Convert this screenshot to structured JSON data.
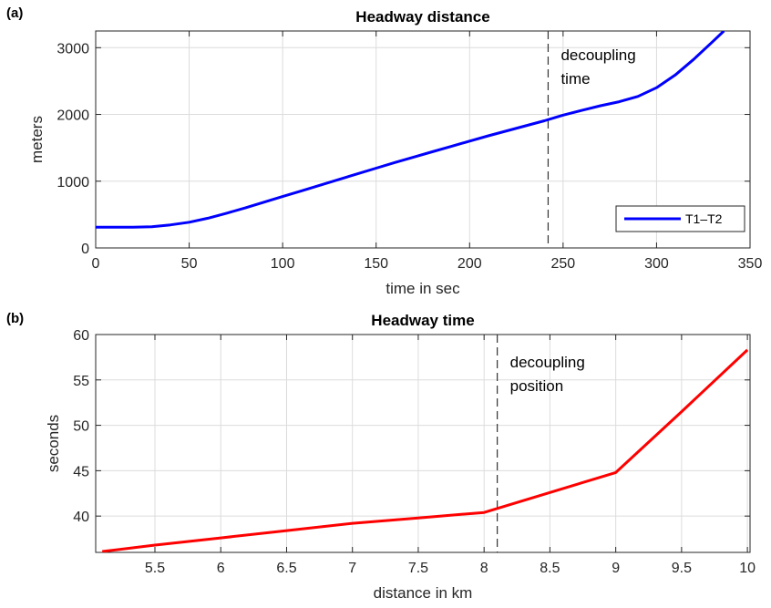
{
  "chart_data": [
    {
      "panel_label": "(a)",
      "type": "line",
      "title": "Headway distance",
      "xlabel": "time in sec",
      "ylabel": "meters",
      "xlim": [
        0,
        350
      ],
      "ylim": [
        0,
        3250
      ],
      "xticks": [
        0,
        50,
        100,
        150,
        200,
        250,
        300,
        350
      ],
      "xtick_labels": [
        "0",
        "50",
        "100",
        "150",
        "200",
        "250",
        "300",
        "350"
      ],
      "yticks": [
        0,
        1000,
        2000,
        3000
      ],
      "ytick_labels": [
        "0",
        "1000",
        "2000",
        "3000"
      ],
      "grid": true,
      "legend": "bottom-right",
      "series": [
        {
          "name": "T1–T2",
          "color": "#0000ff",
          "x": [
            0,
            10,
            20,
            30,
            40,
            50,
            60,
            70,
            80,
            90,
            100,
            110,
            120,
            130,
            140,
            150,
            160,
            170,
            180,
            190,
            200,
            210,
            220,
            230,
            240,
            250,
            260,
            270,
            280,
            290,
            300,
            310,
            320,
            330,
            336
          ],
          "y": [
            310,
            310,
            312,
            318,
            345,
            385,
            445,
            520,
            600,
            685,
            770,
            855,
            940,
            1025,
            1110,
            1195,
            1280,
            1360,
            1440,
            1520,
            1600,
            1680,
            1755,
            1830,
            1905,
            1990,
            2060,
            2130,
            2190,
            2270,
            2400,
            2590,
            2830,
            3090,
            3250
          ]
        }
      ],
      "vline": {
        "x": 242,
        "label_lines": [
          "decoupling",
          "time"
        ]
      }
    },
    {
      "panel_label": "(b)",
      "type": "line",
      "title": "Headway time",
      "xlabel": "distance in km",
      "ylabel": "seconds",
      "xlim": [
        5.05,
        10.02
      ],
      "ylim": [
        36,
        60
      ],
      "xticks": [
        5.5,
        6,
        6.5,
        7,
        7.5,
        8,
        8.5,
        9,
        9.5,
        10
      ],
      "xtick_labels": [
        "5.5",
        "6",
        "6.5",
        "7",
        "7.5",
        "8",
        "8.5",
        "9",
        "9.5",
        "10"
      ],
      "yticks": [
        40,
        45,
        50,
        55,
        60
      ],
      "ytick_labels": [
        "40",
        "45",
        "50",
        "55",
        "60"
      ],
      "grid": true,
      "series": [
        {
          "color": "#ff0000",
          "x": [
            5.1,
            5.5,
            6,
            6.5,
            7,
            7.5,
            8,
            8.5,
            9,
            9.5,
            10
          ],
          "y": [
            36.1,
            36.8,
            37.6,
            38.4,
            39.2,
            39.8,
            40.4,
            42.6,
            44.8,
            51.5,
            58.3
          ]
        }
      ],
      "vline": {
        "x": 8.1,
        "label_lines": [
          "decoupling",
          "position"
        ]
      }
    }
  ]
}
